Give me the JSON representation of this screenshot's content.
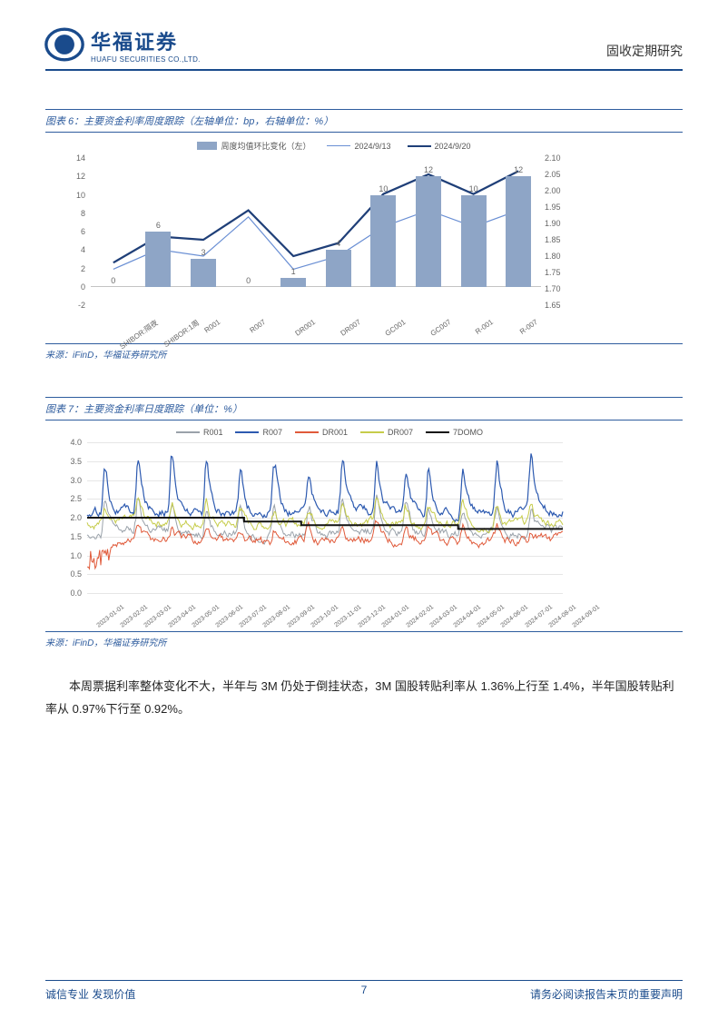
{
  "header": {
    "logo_cn": "华福证券",
    "logo_en": "HUAFU SECURITIES CO.,LTD.",
    "right": "固收定期研究"
  },
  "fig6": {
    "title": "图表 6：主要资金利率周度跟踪（左轴单位：bp，右轴单位：%）",
    "legend": {
      "bar": "周度均值环比变化（左）",
      "l1": "2024/9/13",
      "l2": "2024/9/20"
    },
    "categories": [
      "SHIBOR:隔夜",
      "SHIBOR:1周",
      "R001",
      "R007",
      "DR001",
      "DR007",
      "GC001",
      "GC007",
      "R-001",
      "R-007"
    ],
    "bars": [
      0,
      6,
      3,
      0,
      1,
      4,
      10,
      12,
      10,
      12
    ],
    "line1": [
      1.76,
      1.82,
      1.8,
      1.92,
      1.76,
      1.8,
      1.89,
      1.94,
      1.89,
      1.94
    ],
    "line2": [
      1.78,
      1.86,
      1.85,
      1.94,
      1.8,
      1.84,
      1.99,
      2.05,
      1.99,
      2.06
    ],
    "yl": {
      "min": -2,
      "max": 14,
      "step": 2
    },
    "yr": {
      "min": 1.65,
      "max": 2.1,
      "step": 0.05
    },
    "colors": {
      "bar": "#8ea5c6",
      "l1": "#6a8fd4",
      "l2": "#1f3f78"
    },
    "source": "来源：iFinD，华福证券研究所"
  },
  "fig7": {
    "title": "图表 7：主要资金利率日度跟踪（单位：%）",
    "legend": [
      "R001",
      "R007",
      "DR001",
      "DR007",
      "7DOMO"
    ],
    "colors": [
      "#9aa2aa",
      "#2d5ab0",
      "#e05a3a",
      "#c6cc4a",
      "#111111"
    ],
    "y": {
      "min": 0.0,
      "max": 4.0,
      "step": 0.5
    },
    "xlabels": [
      "2023-01-01",
      "2023-02-01",
      "2023-03-01",
      "2023-04-01",
      "2023-05-01",
      "2023-06-01",
      "2023-07-01",
      "2023-08-01",
      "2023-09-01",
      "2023-10-01",
      "2023-11-01",
      "2023-12-01",
      "2024-01-01",
      "2024-02-01",
      "2024-03-01",
      "2024-04-01",
      "2024-05-01",
      "2024-06-01",
      "2024-07-01",
      "2024-08-01",
      "2024-09-01"
    ],
    "source": "来源：iFinD，华福证券研究所"
  },
  "body": "本周票据利率整体变化不大，半年与 3M 仍处于倒挂状态，3M 国股转贴利率从 1.36%上行至 1.4%，半年国股转贴利率从 0.97%下行至 0.92%。",
  "footer": {
    "left": "诚信专业  发现价值",
    "page": "7",
    "right": "请务必阅读报告末页的重要声明"
  }
}
